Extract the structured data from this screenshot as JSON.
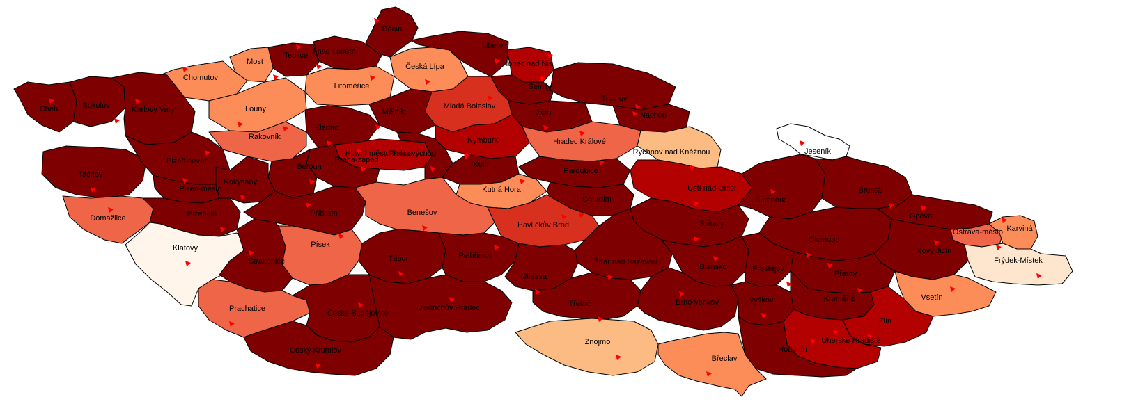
{
  "colors": {
    "c0": "#fff5eb",
    "c1": "#fee6ce",
    "c2": "#fdbb84",
    "c3": "#fc8d59",
    "c4": "#ef6548",
    "c5": "#d7301f",
    "c6": "#b30000",
    "c7": "#7f0000",
    "marker": "#ff0000",
    "border": "#000000"
  },
  "districts": [
    {
      "name": "Děčín",
      "cls": "c7"
    },
    {
      "name": "Liberec",
      "cls": "c7"
    },
    {
      "name": "Jablonec nad Nisou",
      "label": "lonec nad Nis",
      "cls": "c6"
    },
    {
      "name": "Ústí nad Labem",
      "label": "í nad Labem",
      "cls": "c7"
    },
    {
      "name": "Teplice",
      "cls": "c7"
    },
    {
      "name": "Most",
      "cls": "c3"
    },
    {
      "name": "Chomutov",
      "cls": "c3"
    },
    {
      "name": "Česká Lípa",
      "cls": "c3"
    },
    {
      "name": "Litoměřice",
      "cls": "c3"
    },
    {
      "name": "Louny",
      "cls": "c3"
    },
    {
      "name": "Semily",
      "cls": "c7"
    },
    {
      "name": "Trutnov",
      "cls": "c7"
    },
    {
      "name": "Náchod",
      "cls": "c7"
    },
    {
      "name": "Jičín",
      "cls": "c7"
    },
    {
      "name": "Mladá Boleslav",
      "cls": "c5"
    },
    {
      "name": "Mělník",
      "cls": "c7"
    },
    {
      "name": "Cheb",
      "cls": "c7"
    },
    {
      "name": "Sokolov",
      "cls": "c7"
    },
    {
      "name": "Karlovy Vary",
      "cls": "c7"
    },
    {
      "name": "Kladno",
      "cls": "c7"
    },
    {
      "name": "Rakovník",
      "cls": "c4"
    },
    {
      "name": "Nymburk",
      "cls": "c6"
    },
    {
      "name": "Hradec Králové",
      "cls": "c4"
    },
    {
      "name": "Rychnov nad Kněžnou",
      "cls": "c2"
    },
    {
      "name": "Jeseník",
      "cls": "white"
    },
    {
      "name": "Tachov",
      "cls": "c7"
    },
    {
      "name": "Plzeň-sever",
      "cls": "c7"
    },
    {
      "name": "Hlavní město Praha",
      "label": "Hlavní město Praha",
      "cls": "c6"
    },
    {
      "name": "Praha-západ",
      "label": "Praha-západ",
      "cls": "c7"
    },
    {
      "name": "Praha-východ",
      "cls": "c7"
    },
    {
      "name": "Kolín",
      "cls": "c7"
    },
    {
      "name": "Beroun",
      "cls": "c7"
    },
    {
      "name": "Pardubice",
      "cls": "c7"
    },
    {
      "name": "Ústí nad Orlicí",
      "cls": "c6"
    },
    {
      "name": "Šumperk",
      "cls": "c7"
    },
    {
      "name": "Bruntál",
      "cls": "c7"
    },
    {
      "name": "Plzeň-město",
      "cls": "c7"
    },
    {
      "name": "Rokycany",
      "cls": "c7"
    },
    {
      "name": "Kutná Hora",
      "cls": "c3"
    },
    {
      "name": "Chrudim",
      "cls": "c7"
    },
    {
      "name": "Domažlice",
      "cls": "c4"
    },
    {
      "name": "Plzeň-jih",
      "cls": "c7"
    },
    {
      "name": "Příbram",
      "cls": "c7"
    },
    {
      "name": "Benešov",
      "cls": "c4"
    },
    {
      "name": "Havlíčkův Brod",
      "cls": "c5"
    },
    {
      "name": "Svitavy",
      "cls": "c7"
    },
    {
      "name": "Opava",
      "cls": "c7"
    },
    {
      "name": "Ostrava-město",
      "cls": "c4"
    },
    {
      "name": "Karviná",
      "cls": "c3"
    },
    {
      "name": "Klatovy",
      "cls": "c0"
    },
    {
      "name": "Písek",
      "cls": "c4"
    },
    {
      "name": "Olomouc",
      "cls": "c7"
    },
    {
      "name": "Nový Jičín",
      "cls": "c7"
    },
    {
      "name": "Frýdek-Místek",
      "cls": "c1"
    },
    {
      "name": "Strakonice",
      "cls": "c7"
    },
    {
      "name": "Tábor",
      "cls": "c7"
    },
    {
      "name": "Pelhřimov",
      "cls": "c7"
    },
    {
      "name": "Žďár nad Sázavou",
      "cls": "c7"
    },
    {
      "name": "Blansko",
      "cls": "c7"
    },
    {
      "name": "Prostějov",
      "cls": "c7"
    },
    {
      "name": "Přerov",
      "cls": "c7"
    },
    {
      "name": "Jihlava",
      "cls": "c7"
    },
    {
      "name": "Vsetín",
      "cls": "c3"
    },
    {
      "name": "Prachatice",
      "cls": "c4"
    },
    {
      "name": "Jindřichův Hradec",
      "cls": "c7"
    },
    {
      "name": "Třebíč",
      "cls": "c7"
    },
    {
      "name": "Brno-venkov",
      "label": "Brno-venkov",
      "cls": "c7"
    },
    {
      "name": "Vyškov",
      "cls": "c7"
    },
    {
      "name": "Kroměříž",
      "cls": "c7"
    },
    {
      "name": "Zlín",
      "cls": "c6"
    },
    {
      "name": "České Budějovice",
      "cls": "c7"
    },
    {
      "name": "Znojmo",
      "cls": "c2"
    },
    {
      "name": "Uherské Hradiště",
      "cls": "c6"
    },
    {
      "name": "Český Krumlov",
      "cls": "c7"
    },
    {
      "name": "Hodonín",
      "cls": "c7"
    },
    {
      "name": "Břeclav",
      "cls": "c3"
    }
  ]
}
